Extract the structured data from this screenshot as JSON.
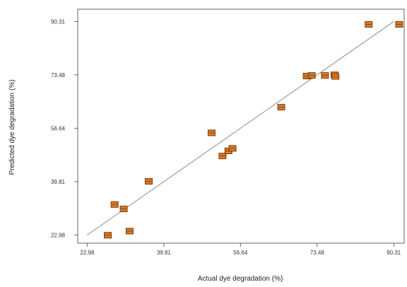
{
  "chart_data": {
    "type": "scatter",
    "title": "",
    "xlabel": "Actual dye degradation (%)",
    "ylabel": "Predicted dye degradation (%)",
    "xlim": [
      20.9,
      92.6
    ],
    "ylim": [
      20.4,
      94.2
    ],
    "x_ticks": [
      22.98,
      39.81,
      56.64,
      73.48,
      90.31
    ],
    "y_ticks": [
      22.98,
      39.81,
      56.64,
      73.48,
      90.31
    ],
    "x_tick_labels": [
      "22.98",
      "39.81",
      "56.64",
      "73.48",
      "90.31"
    ],
    "y_tick_labels": [
      "22.98",
      "39.81",
      "56.64",
      "73.48",
      "90.31"
    ],
    "grid": false,
    "legend": "none",
    "marker_color": "#d87a2a",
    "marker_edge_color": "#7a3a08",
    "line_color": "#8a8a8a",
    "line": {
      "x": [
        22.98,
        90.31
      ],
      "y": [
        22.98,
        90.31
      ]
    },
    "points": [
      {
        "x": 27.5,
        "y": 22.9
      },
      {
        "x": 29.0,
        "y": 32.6
      },
      {
        "x": 31.0,
        "y": 31.2
      },
      {
        "x": 32.3,
        "y": 24.2
      },
      {
        "x": 36.5,
        "y": 39.9
      },
      {
        "x": 50.3,
        "y": 55.2
      },
      {
        "x": 52.7,
        "y": 47.9
      },
      {
        "x": 54.0,
        "y": 49.5
      },
      {
        "x": 54.9,
        "y": 50.3
      },
      {
        "x": 65.6,
        "y": 63.3
      },
      {
        "x": 71.2,
        "y": 73.1
      },
      {
        "x": 72.3,
        "y": 73.3
      },
      {
        "x": 75.2,
        "y": 73.3
      },
      {
        "x": 77.3,
        "y": 73.5
      },
      {
        "x": 77.5,
        "y": 73.0
      },
      {
        "x": 84.8,
        "y": 89.4
      },
      {
        "x": 91.5,
        "y": 89.4
      }
    ]
  }
}
